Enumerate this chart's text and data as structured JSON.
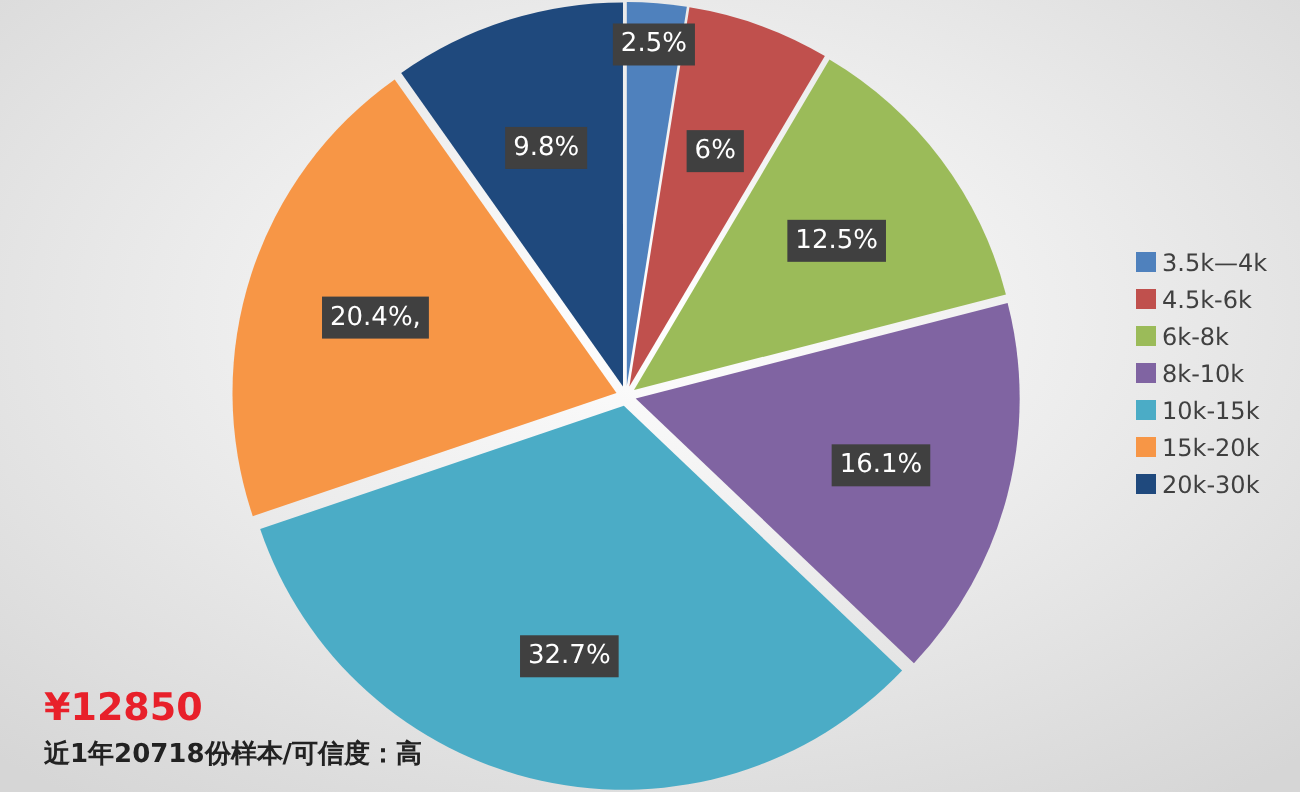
{
  "chart_data": {
    "type": "pie",
    "categories": [
      "3.5k—4k",
      "4.5k-6k",
      "6k-8k",
      "8k-10k",
      "10k-15k",
      "15k-20k",
      "20k-30k"
    ],
    "values": [
      2.5,
      6,
      12.5,
      16.1,
      32.7,
      20.4,
      9.8
    ],
    "value_labels": [
      "2.5%",
      "6%",
      "12.5%",
      "16.1%",
      "32.7%",
      "20.4%,",
      "9.8%"
    ],
    "colors": [
      "#4f81bd",
      "#c0504d",
      "#9bbb59",
      "#8064a2",
      "#4bacc6",
      "#f79646",
      "#1f497d"
    ],
    "legend": "right",
    "annotations": [
      "¥12850",
      "近1年20718份样本/可信度：高"
    ]
  }
}
